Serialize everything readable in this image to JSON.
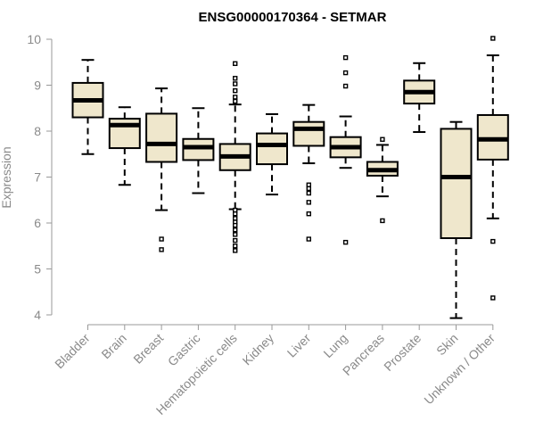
{
  "colors": {
    "box_fill": "#efe7cc",
    "stroke": "#000000",
    "axis": "#999999",
    "text_gray": "#8a8a8a"
  },
  "chart_data": {
    "type": "boxplot",
    "title": "ENSG00000170364 - SETMAR",
    "xlabel": "",
    "ylabel": "Expression",
    "ylim": [
      4,
      10
    ],
    "yticks": [
      4,
      5,
      6,
      7,
      8,
      9,
      10
    ],
    "categories": [
      "Bladder",
      "Brain",
      "Breast",
      "Gastric",
      "Hematopoietic cells",
      "Kidney",
      "Liver",
      "Lung",
      "Pancreas",
      "Prostate",
      "Skin",
      "Unknown / Other"
    ],
    "boxes": [
      {
        "name": "Bladder",
        "whisker_low": 7.5,
        "q1": 8.3,
        "median": 8.67,
        "q3": 9.05,
        "whisker_high": 9.55,
        "outliers": []
      },
      {
        "name": "Brain",
        "whisker_low": 6.83,
        "q1": 7.63,
        "median": 8.13,
        "q3": 8.27,
        "whisker_high": 8.52,
        "outliers": []
      },
      {
        "name": "Breast",
        "whisker_low": 6.28,
        "q1": 7.33,
        "median": 7.72,
        "q3": 8.38,
        "whisker_high": 8.93,
        "outliers": [
          5.65,
          5.42
        ]
      },
      {
        "name": "Gastric",
        "whisker_low": 6.65,
        "q1": 7.37,
        "median": 7.65,
        "q3": 7.83,
        "whisker_high": 8.5,
        "outliers": []
      },
      {
        "name": "Hematopoietic cells",
        "whisker_low": 6.3,
        "q1": 7.15,
        "median": 7.45,
        "q3": 7.72,
        "whisker_high": 8.58,
        "outliers": [
          9.47,
          9.15,
          9.03,
          8.88,
          8.74,
          8.65,
          6.28,
          6.2,
          6.1,
          6.02,
          5.95,
          5.85,
          5.75,
          5.62,
          5.5,
          5.4
        ]
      },
      {
        "name": "Kidney",
        "whisker_low": 6.62,
        "q1": 7.28,
        "median": 7.7,
        "q3": 7.95,
        "whisker_high": 8.37,
        "outliers": []
      },
      {
        "name": "Liver",
        "whisker_low": 7.3,
        "q1": 7.68,
        "median": 8.05,
        "q3": 8.2,
        "whisker_high": 8.57,
        "outliers": [
          6.83,
          6.75,
          6.65,
          6.45,
          6.2,
          5.65
        ]
      },
      {
        "name": "Lung",
        "whisker_low": 7.2,
        "q1": 7.43,
        "median": 7.65,
        "q3": 7.87,
        "whisker_high": 8.32,
        "outliers": [
          9.6,
          9.27,
          8.98,
          5.58
        ]
      },
      {
        "name": "Pancreas",
        "whisker_low": 6.58,
        "q1": 7.03,
        "median": 7.15,
        "q3": 7.33,
        "whisker_high": 7.7,
        "outliers": [
          7.82,
          6.05
        ]
      },
      {
        "name": "Prostate",
        "whisker_low": 7.98,
        "q1": 8.6,
        "median": 8.85,
        "q3": 9.1,
        "whisker_high": 9.48,
        "outliers": []
      },
      {
        "name": "Skin",
        "whisker_low": 3.93,
        "q1": 5.67,
        "median": 7.0,
        "q3": 8.05,
        "whisker_high": 8.2,
        "outliers": []
      },
      {
        "name": "Unknown / Other",
        "whisker_low": 6.1,
        "q1": 7.38,
        "median": 7.82,
        "q3": 8.35,
        "whisker_high": 9.65,
        "outliers": [
          10.02,
          5.6,
          4.37
        ]
      }
    ]
  }
}
